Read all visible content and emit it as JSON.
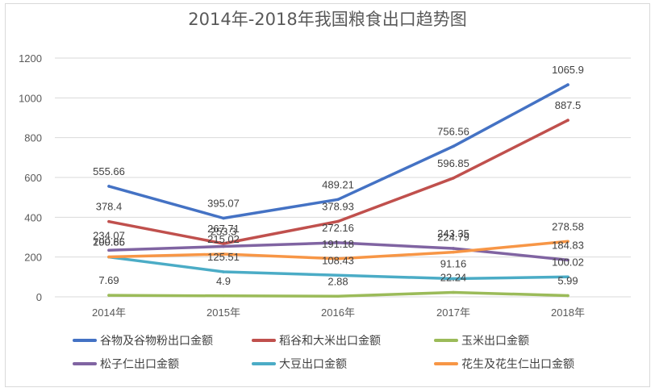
{
  "chart_data": {
    "type": "line",
    "title": "2014年-2018年我国粮食出口趋势图",
    "categories": [
      "2014年",
      "2015年",
      "2016年",
      "2017年",
      "2018年"
    ],
    "ylim": [
      0,
      1200
    ],
    "yticks": [
      0,
      200,
      400,
      600,
      800,
      1000,
      1200
    ],
    "grid": true,
    "legend_position": "bottom",
    "series": [
      {
        "name": "谷物及谷物粉出口金额",
        "color": "#4472C4",
        "values": [
          555.66,
          395.07,
          489.21,
          756.56,
          1065.9
        ],
        "labels": [
          "555.66",
          "395.07",
          "489.21",
          "756.56",
          "1065.9"
        ]
      },
      {
        "name": "稻谷和大米出口金额",
        "color": "#C0504D",
        "values": [
          378.4,
          267.71,
          378.93,
          596.85,
          887.5
        ],
        "labels": [
          "378.4",
          "267.71",
          "378.93",
          "596.85",
          "887.5"
        ]
      },
      {
        "name": "玉米出口金额",
        "color": "#9BBB59",
        "values": [
          7.69,
          4.9,
          2.88,
          22.24,
          5.99
        ],
        "labels": [
          "7.69",
          "4.9",
          "2.88",
          "22.24",
          "5.99"
        ]
      },
      {
        "name": "松子仁出口金额",
        "color": "#8064A2",
        "values": [
          234.07,
          253.3,
          272.16,
          243.35,
          184.83
        ],
        "labels": [
          "234.07",
          "253.3",
          "272.16",
          "243.35",
          "184.83"
        ]
      },
      {
        "name": "大豆出口金额",
        "color": "#4BACC6",
        "values": [
          199.85,
          125.51,
          108.43,
          91.16,
          100.02
        ],
        "labels": [
          "199.85",
          "125.51",
          "108.43",
          "91.16",
          "100.02"
        ]
      },
      {
        "name": "花生及花生仁出口金额",
        "color": "#F79646",
        "values": [
          200.66,
          215.02,
          191.18,
          224.79,
          278.58
        ],
        "labels": [
          "200.66",
          "215.02",
          "191.18",
          "224.79",
          "278.58"
        ]
      }
    ]
  }
}
